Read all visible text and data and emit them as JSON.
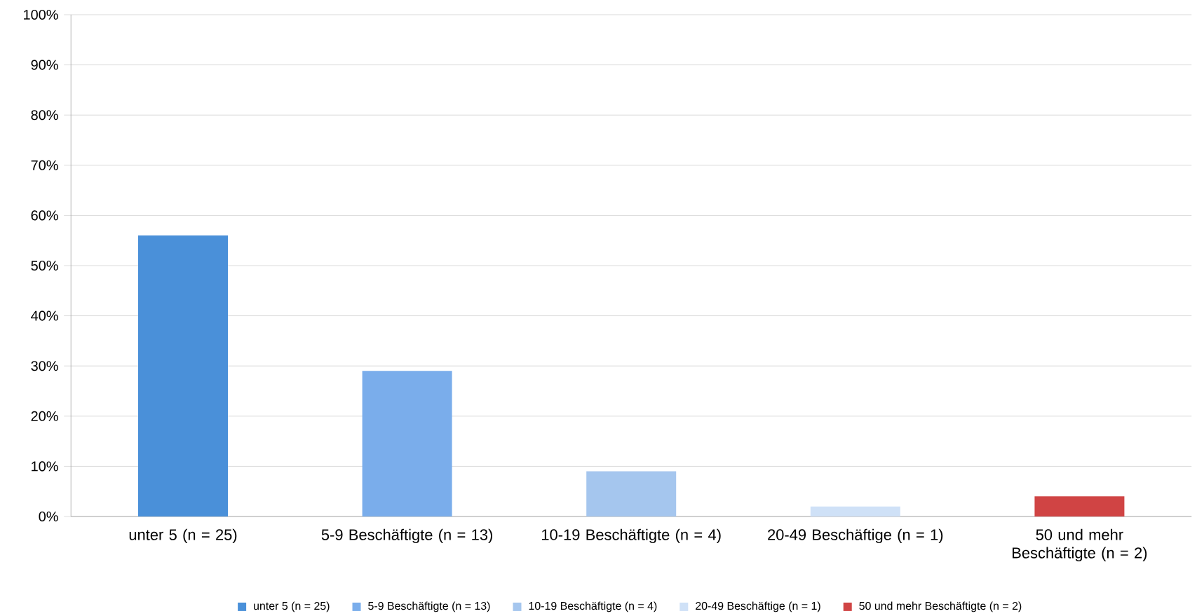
{
  "chart_data": {
    "type": "bar",
    "categories": [
      "unter 5 (n = 25)",
      "5-9 Beschäftigte (n = 13)",
      "10-19 Beschäftigte (n = 4)",
      "20-49 Beschäftige (n = 1)",
      "50 und mehr Beschäftigte (n = 2)"
    ],
    "series": [
      {
        "name": "unter 5 (n = 25)",
        "color": "#4a90d9",
        "values": [
          56,
          null,
          null,
          null,
          null
        ]
      },
      {
        "name": "5-9 Beschäftigte (n = 13)",
        "color": "#7aadeb",
        "values": [
          null,
          29,
          null,
          null,
          null
        ]
      },
      {
        "name": "10-19 Beschäftigte (n = 4)",
        "color": "#a5c6ee",
        "values": [
          null,
          null,
          9,
          null,
          null
        ]
      },
      {
        "name": "20-49 Beschäftige (n = 1)",
        "color": "#cfe1f7",
        "values": [
          null,
          null,
          null,
          2,
          null
        ]
      },
      {
        "name": "50 und mehr Beschäftigte (n = 2)",
        "color": "#d04444",
        "values": [
          null,
          null,
          null,
          null,
          4
        ]
      }
    ],
    "ylim": [
      0,
      100
    ],
    "yticks": [
      {
        "value": 0,
        "label": "0%"
      },
      {
        "value": 10,
        "label": "10%"
      },
      {
        "value": 20,
        "label": "20%"
      },
      {
        "value": 30,
        "label": "30%"
      },
      {
        "value": 40,
        "label": "40%"
      },
      {
        "value": 50,
        "label": "50%"
      },
      {
        "value": 60,
        "label": "60%"
      },
      {
        "value": 70,
        "label": "70%"
      },
      {
        "value": 80,
        "label": "80%"
      },
      {
        "value": 90,
        "label": "90%"
      },
      {
        "value": 100,
        "label": "100%"
      }
    ],
    "grid": "y",
    "legend": "bottom"
  }
}
